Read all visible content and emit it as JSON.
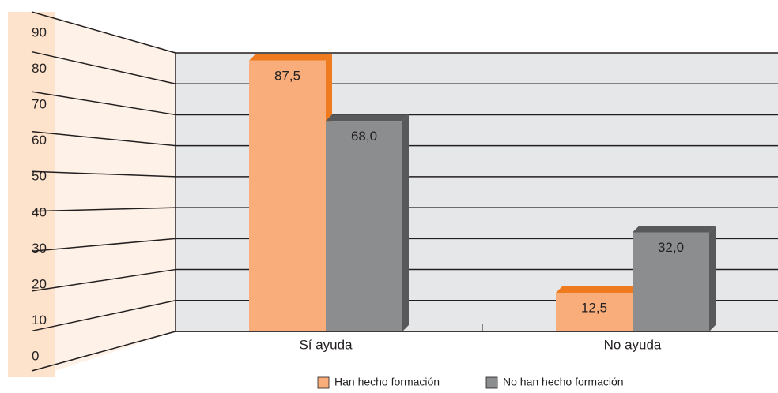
{
  "chart_data": {
    "type": "bar3d",
    "categories": [
      "Sí ayuda",
      "No ayuda"
    ],
    "series": [
      {
        "name": "Han hecho formación",
        "color": "#f9ad7a",
        "side_color": "#f07a1e",
        "values": [
          87.5,
          12.5
        ],
        "value_labels": [
          "87,5",
          "12,5"
        ]
      },
      {
        "name": "No han hecho formación",
        "color": "#8c8d8f",
        "side_color": "#58595b",
        "values": [
          68.0,
          32.0
        ],
        "value_labels": [
          "68,0",
          "32,0"
        ]
      }
    ],
    "ylim": [
      0,
      90
    ],
    "yticks": [
      0,
      10,
      20,
      30,
      40,
      50,
      60,
      70,
      80,
      90
    ],
    "grid": true,
    "legend": "bottom"
  }
}
